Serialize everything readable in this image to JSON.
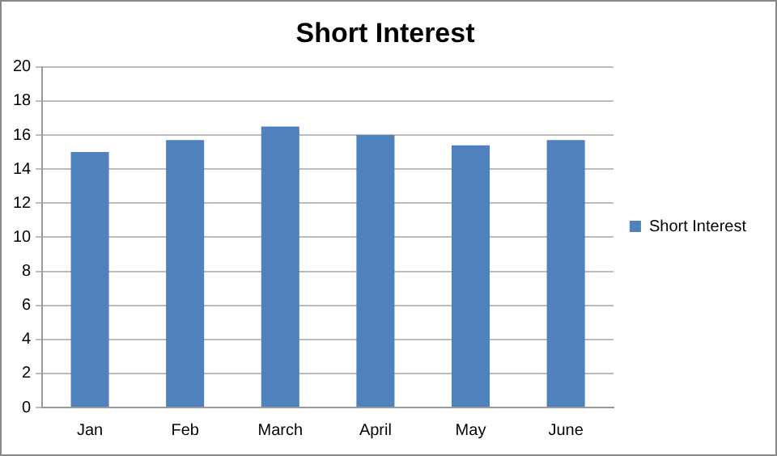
{
  "chart_data": {
    "type": "bar",
    "title": "Short Interest",
    "categories": [
      "Jan",
      "Feb",
      "March",
      "April",
      "May",
      "June"
    ],
    "series": [
      {
        "name": "Short Interest",
        "color": "#4f81bd",
        "values": [
          15,
          15.7,
          16.5,
          16,
          15.4,
          15.7
        ]
      }
    ],
    "ylim": [
      0,
      20
    ],
    "yticks": [
      0,
      2,
      4,
      6,
      8,
      10,
      12,
      14,
      16,
      18,
      20
    ],
    "grid": "y",
    "legend": "right"
  }
}
